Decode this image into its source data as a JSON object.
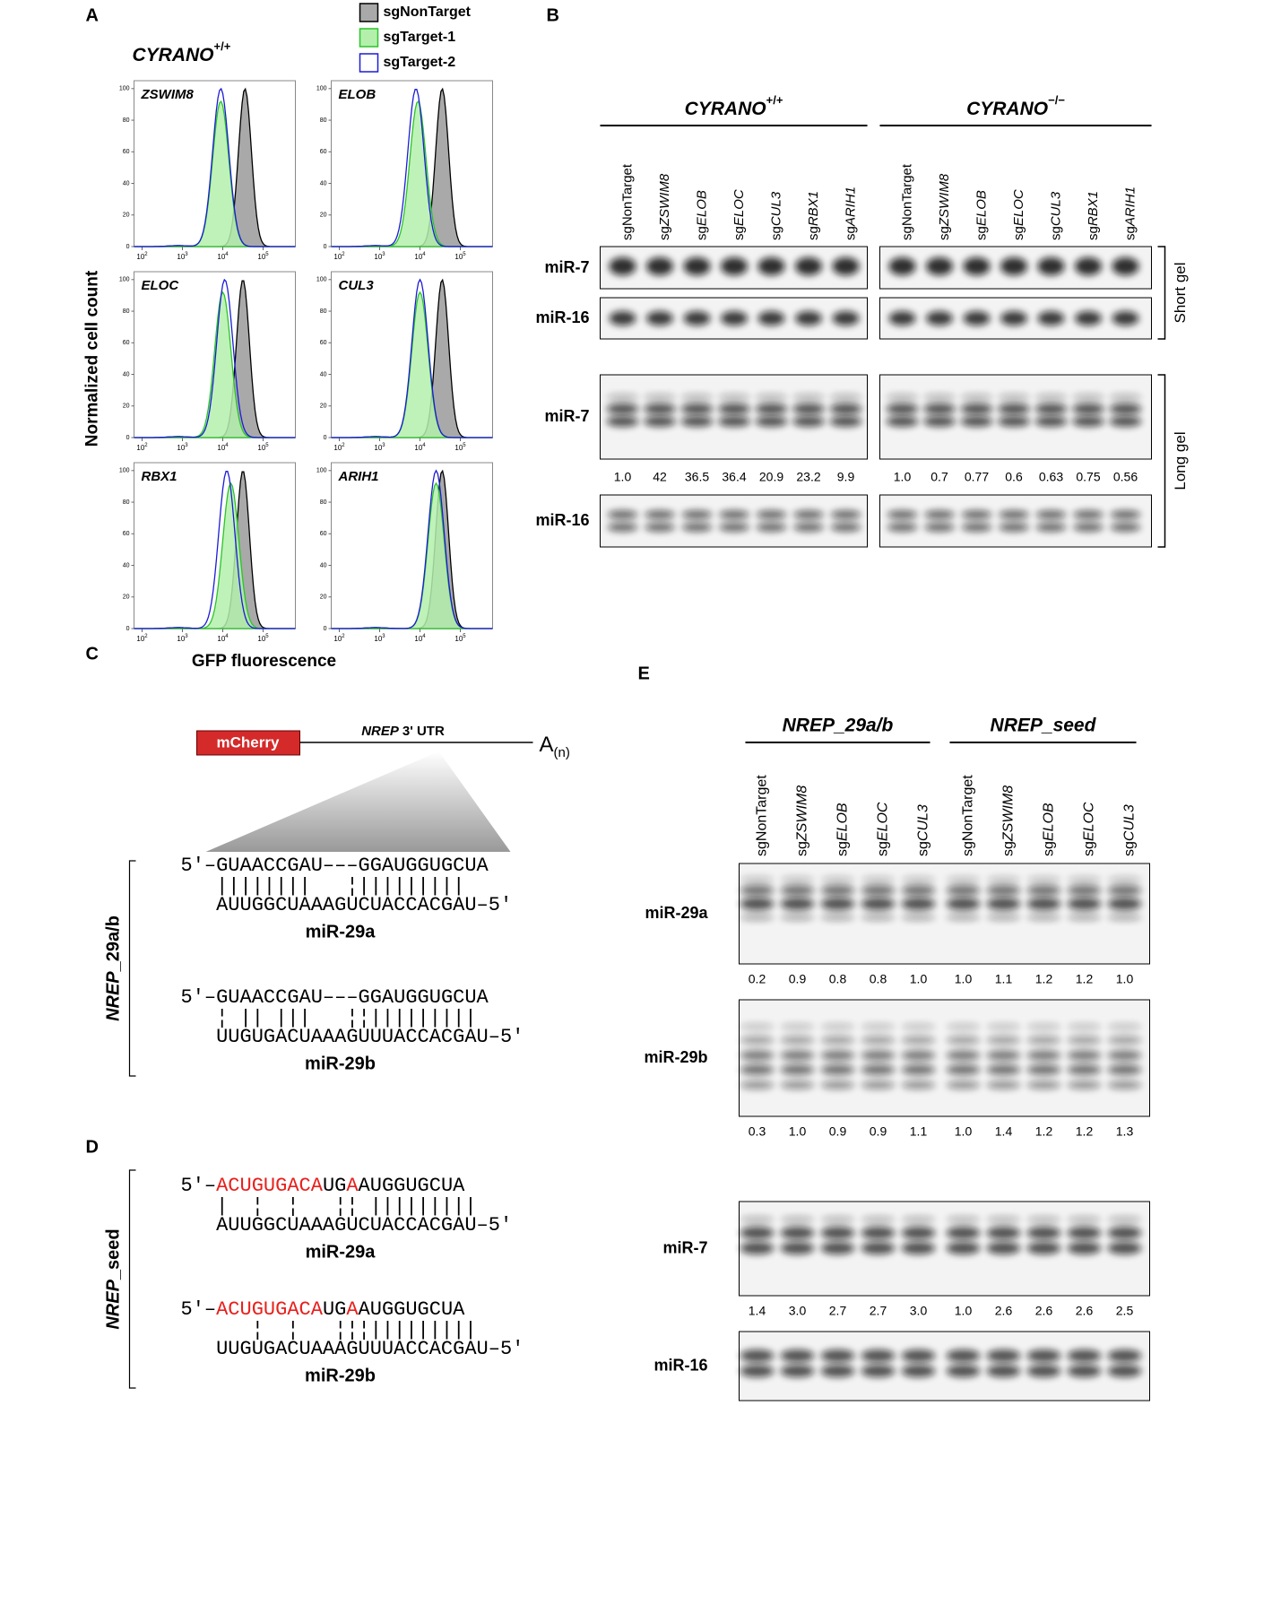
{
  "panel_a": {
    "label": "A",
    "genotype": "CYRANO",
    "genotype_sup": "+/+",
    "legend": [
      {
        "name": "sgNonTarget",
        "color": "#a9a9a9"
      },
      {
        "name": "sgTarget-1",
        "color": "#b4f0ac"
      },
      {
        "name": "sgTarget-2",
        "color": "#1c1cd6"
      }
    ],
    "y_label": "Normalized cell count",
    "x_label": "GFP fluorescence",
    "ylim": [
      0,
      105
    ],
    "yticks": [
      0,
      20,
      40,
      60,
      80,
      100
    ],
    "xlim": [
      1.8,
      5.8
    ],
    "xticks": [
      {
        "value": 2,
        "label": "10"
      },
      {
        "value": 3,
        "label": "10"
      },
      {
        "value": 4,
        "label": "10"
      },
      {
        "value": 5,
        "label": "10"
      }
    ],
    "xtick_exponents": [
      "2",
      "3",
      "4",
      "5"
    ],
    "histograms": [
      {
        "gene": "ZSWIM8",
        "peaks": [
          4.55,
          3.95,
          3.95
        ]
      },
      {
        "gene": "ELOB",
        "peaks": [
          4.55,
          3.95,
          3.9
        ]
      },
      {
        "gene": "ELOC",
        "peaks": [
          4.5,
          4.0,
          4.05
        ]
      },
      {
        "gene": "CUL3",
        "peaks": [
          4.55,
          4.0,
          4.0
        ]
      },
      {
        "gene": "RBX1",
        "peaks": [
          4.5,
          4.2,
          4.1
        ]
      },
      {
        "gene": "ARIH1",
        "peaks": [
          4.55,
          4.4,
          4.4
        ]
      }
    ]
  },
  "panel_b": {
    "label": "B",
    "groups": [
      {
        "name": "CYRANO",
        "sup": "+/+"
      },
      {
        "name": "CYRANO",
        "sup": "−/−"
      }
    ],
    "lanes": [
      [
        "sgNonTarget"
      ],
      [
        "sg",
        "ZSWIM8"
      ],
      [
        "sg",
        "ELOB"
      ],
      [
        "sg",
        "ELOC"
      ],
      [
        "sg",
        "CUL3"
      ],
      [
        "sg",
        "RBX1"
      ],
      [
        "sg",
        "ARIH1"
      ]
    ],
    "rows": [
      "miR-7",
      "miR-16",
      "miR-7",
      "miR-16"
    ],
    "gels": [
      "Short gel",
      "Long gel"
    ],
    "quant": [
      [
        "1.0",
        "42",
        "36.5",
        "36.4",
        "20.9",
        "23.2",
        "9.9"
      ],
      [
        "1.0",
        "0.7",
        "0.77",
        "0.6",
        "0.63",
        "0.75",
        "0.56"
      ]
    ]
  },
  "panel_c": {
    "label": "C",
    "reporter": "mCherry",
    "utr_gene": "NREP",
    "utr_text": "3' UTR",
    "tail": "A",
    "tail_sub": "(n)",
    "bracket_label": [
      "NREP",
      "_29a/b"
    ],
    "alignments": [
      {
        "target": [
          {
            "text": "5′–GUAACCGAU–––GGAUGGUGCUA",
            "color": "#000000"
          }
        ],
        "pairs": "||||||||   ¦|||||||||",
        "mirna": "AUUGGCUAAAGUCUACCACGAU–5′",
        "name": "miR-29a"
      },
      {
        "target": [
          {
            "text": "5′–GUAACCGAU–––GGAUGGUGCUA",
            "color": "#000000"
          }
        ],
        "pairs": "¦ || |||   ¦¦|||||||||",
        "mirna": "UUGUGACUAAAGUUUACCACGAU–5′",
        "name": "miR-29b"
      }
    ]
  },
  "panel_d": {
    "label": "D",
    "bracket_label": [
      "NREP",
      "_seed"
    ],
    "alignments": [
      {
        "target": [
          {
            "text": "5′–",
            "color": "#000000"
          },
          {
            "text": "ACUGUGACA",
            "color": "#e8201c"
          },
          {
            "text": "UG",
            "color": "#000000"
          },
          {
            "text": "A",
            "color": "#e8201c"
          },
          {
            "text": "AUGGUGCUA",
            "color": "#000000"
          }
        ],
        "pairs": "|  ¦  ¦   ¦¦ |||||||||",
        "mirna": "AUUGGCUAAAGUCUACCACGAU–5′",
        "name": "miR-29a"
      },
      {
        "target": [
          {
            "text": "5′–",
            "color": "#000000"
          },
          {
            "text": "ACUGUGACA",
            "color": "#e8201c"
          },
          {
            "text": "UG",
            "color": "#000000"
          },
          {
            "text": "A",
            "color": "#e8201c"
          },
          {
            "text": "AUGGUGCUA",
            "color": "#000000"
          }
        ],
        "pairs": "   ¦  ¦   ¦¦¦|||||||||",
        "mirna": "UUGUGACUAAAGUUUACCACGAU–5′",
        "name": "miR-29b"
      }
    ]
  },
  "panel_e": {
    "label": "E",
    "groups": [
      "NREP_29a/b",
      "NREP_seed"
    ],
    "lanes": [
      [
        "sgNonTarget"
      ],
      [
        "sg",
        "ZSWIM8"
      ],
      [
        "sg",
        "ELOB"
      ],
      [
        "sg",
        "ELOC"
      ],
      [
        "sg",
        "CUL3"
      ]
    ],
    "rows": [
      {
        "name": "miR-29a",
        "quant": [
          "0.2",
          "0.9",
          "0.8",
          "0.8",
          "1.0",
          "1.0",
          "1.1",
          "1.2",
          "1.2",
          "1.0"
        ]
      },
      {
        "name": "miR-29b",
        "quant": [
          "0.3",
          "1.0",
          "0.9",
          "0.9",
          "1.1",
          "1.0",
          "1.4",
          "1.2",
          "1.2",
          "1.3"
        ]
      },
      {
        "name": "miR-7",
        "quant": [
          "1.4",
          "3.0",
          "2.7",
          "2.7",
          "3.0",
          "1.0",
          "2.6",
          "2.6",
          "2.6",
          "2.5"
        ]
      },
      {
        "name": "miR-16"
      }
    ]
  }
}
